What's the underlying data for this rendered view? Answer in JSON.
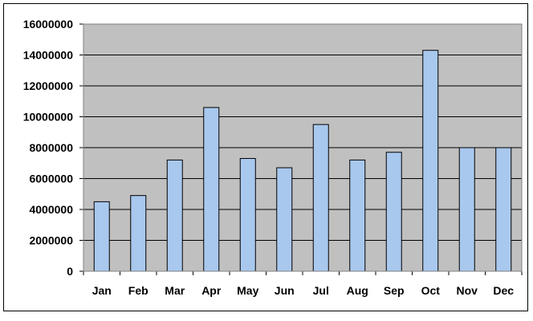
{
  "colors": {
    "plot_background": "#c0c0c0",
    "bar_fill": "#a9c8ee",
    "bar_stroke": "#000000",
    "grid": "#000000"
  },
  "chart_data": {
    "type": "bar",
    "title": "",
    "xlabel": "",
    "ylabel": "",
    "categories": [
      "Jan",
      "Feb",
      "Mar",
      "Apr",
      "May",
      "Jun",
      "Jul",
      "Aug",
      "Sep",
      "Oct",
      "Nov",
      "Dec"
    ],
    "values": [
      4500000,
      4900000,
      7200000,
      10600000,
      7300000,
      6700000,
      9500000,
      7200000,
      7700000,
      14300000,
      8000000,
      8000000
    ],
    "ylim": [
      0,
      16000000
    ],
    "yticks": [
      "0",
      "2000000",
      "4000000",
      "6000000",
      "8000000",
      "10000000",
      "12000000",
      "14000000",
      "16000000"
    ],
    "grid": true,
    "legend": "none"
  }
}
